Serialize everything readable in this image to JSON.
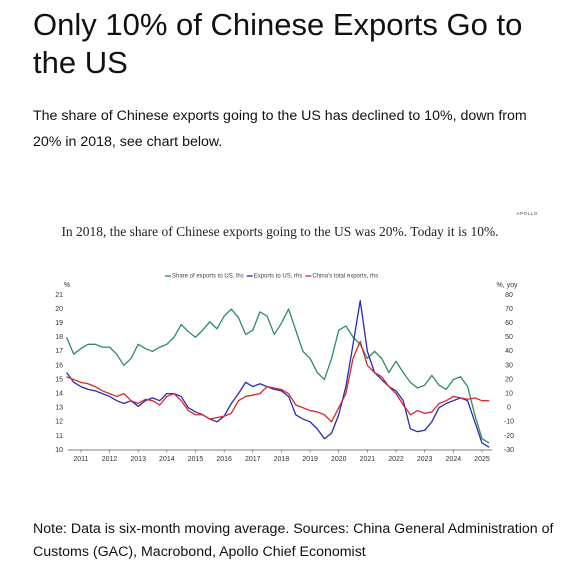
{
  "header": {
    "title": "Only 10% of Chinese Exports Go to the US"
  },
  "body": {
    "paragraph": "The share of Chinese exports going to the US has declined to 10%, down from 20% in 2018, see chart below."
  },
  "footer": {
    "note": "Note: Data is six-month moving average. Sources: China General Administration of Customs (GAC), Macrobond, Apollo Chief Economist"
  },
  "chart_data": {
    "type": "line",
    "title": "In 2018, the share of Chinese exports going to the US was 20%. Today it is 10%.",
    "brand": "APOLLO",
    "ylabel": "%",
    "y2label": "%, yoy",
    "x": [
      2011,
      2011.25,
      2011.5,
      2011.75,
      2012,
      2012.25,
      2012.5,
      2012.75,
      2013,
      2013.25,
      2013.5,
      2013.75,
      2014,
      2014.25,
      2014.5,
      2014.75,
      2015,
      2015.25,
      2015.5,
      2015.75,
      2016,
      2016.25,
      2016.5,
      2016.75,
      2017,
      2017.25,
      2017.5,
      2017.75,
      2018,
      2018.25,
      2018.5,
      2018.75,
      2019,
      2019.25,
      2019.5,
      2019.75,
      2020,
      2020.25,
      2020.5,
      2020.75,
      2021,
      2021.25,
      2021.5,
      2021.75,
      2022,
      2022.25,
      2022.5,
      2022.75,
      2023,
      2023.25,
      2023.5,
      2023.75,
      2024,
      2024.25,
      2024.5,
      2024.75,
      2025,
      2025.25,
      2025.5,
      2025.75
    ],
    "xlim": [
      2011.05,
      2025.85
    ],
    "xticks": [
      {
        "value": 2011.5,
        "label": "2011"
      },
      {
        "value": 2012.5,
        "label": "2012"
      },
      {
        "value": 2013.5,
        "label": "2013"
      },
      {
        "value": 2014.5,
        "label": "2014"
      },
      {
        "value": 2015.5,
        "label": "2015"
      },
      {
        "value": 2016.5,
        "label": "2016"
      },
      {
        "value": 2017.5,
        "label": "2017"
      },
      {
        "value": 2018.5,
        "label": "2018"
      },
      {
        "value": 2019.5,
        "label": "2019"
      },
      {
        "value": 2020.5,
        "label": "2020"
      },
      {
        "value": 2021.5,
        "label": "2021"
      },
      {
        "value": 2022.5,
        "label": "2022"
      },
      {
        "value": 2023.5,
        "label": "2023"
      },
      {
        "value": 2024.5,
        "label": "2024"
      },
      {
        "value": 2025.5,
        "label": "2025"
      }
    ],
    "ylim": [
      10,
      21
    ],
    "yticks": [
      10,
      11,
      12,
      13,
      14,
      15,
      16,
      17,
      18,
      19,
      20,
      21
    ],
    "y2lim": [
      -30,
      80
    ],
    "y2ticks": [
      -30,
      -20,
      -10,
      0,
      10,
      20,
      30,
      40,
      50,
      60,
      70,
      80
    ],
    "legend": "top",
    "series": [
      {
        "name": "Share of exports to US, lhs",
        "color": "#2f8a66",
        "values": [
          18,
          16.8,
          17.2,
          17.5,
          17.5,
          17.3,
          17.3,
          16.8,
          16,
          16.5,
          17.5,
          17.2,
          17,
          17.3,
          17.5,
          18,
          18.9,
          18.4,
          18,
          18.5,
          19.1,
          18.6,
          19.5,
          20,
          19.4,
          18.2,
          18.5,
          19.8,
          19.5,
          18.2,
          19,
          20,
          18.5,
          17,
          16.5,
          15.5,
          15,
          16.5,
          18.5,
          18.8,
          18,
          17.5,
          16.5,
          17,
          16.5,
          15.5,
          16.3,
          15.5,
          14.8,
          14.4,
          14.6,
          15.3,
          14.6,
          14.3,
          15,
          15.2,
          14.5,
          12.5,
          10.8,
          10.5
        ]
      },
      {
        "name": "Exports to US, rhs",
        "color": "#2a2ab5",
        "axis": "y2",
        "values": [
          25,
          18,
          15,
          13,
          12,
          10,
          8,
          5,
          3,
          5,
          1,
          5,
          7,
          5,
          10,
          10,
          8,
          0,
          -3,
          -5,
          -8,
          -10,
          -6,
          3,
          10,
          18,
          15,
          17,
          15,
          13,
          12,
          8,
          -5,
          -8,
          -10,
          -15,
          -22,
          -18,
          -5,
          15,
          45,
          76,
          40,
          25,
          20,
          15,
          12,
          5,
          -15,
          -17,
          -16,
          -10,
          0,
          3,
          5,
          7,
          5,
          -10,
          -25,
          -28
        ]
      },
      {
        "name": "China's total exports, rhs",
        "color": "#d42a2a",
        "axis": "y2",
        "values": [
          22,
          20,
          18,
          17,
          15,
          12,
          10,
          8,
          10,
          5,
          3,
          6,
          5,
          2,
          8,
          10,
          5,
          -2,
          -5,
          -5,
          -8,
          -7,
          -6,
          -4,
          5,
          8,
          9,
          10,
          15,
          14,
          13,
          10,
          2,
          0,
          -2,
          -3,
          -5,
          -10,
          0,
          10,
          35,
          47,
          30,
          25,
          22,
          15,
          10,
          2,
          -5,
          -2,
          -4,
          -3,
          3,
          5,
          8,
          7,
          6,
          7,
          5,
          5
        ]
      }
    ]
  }
}
